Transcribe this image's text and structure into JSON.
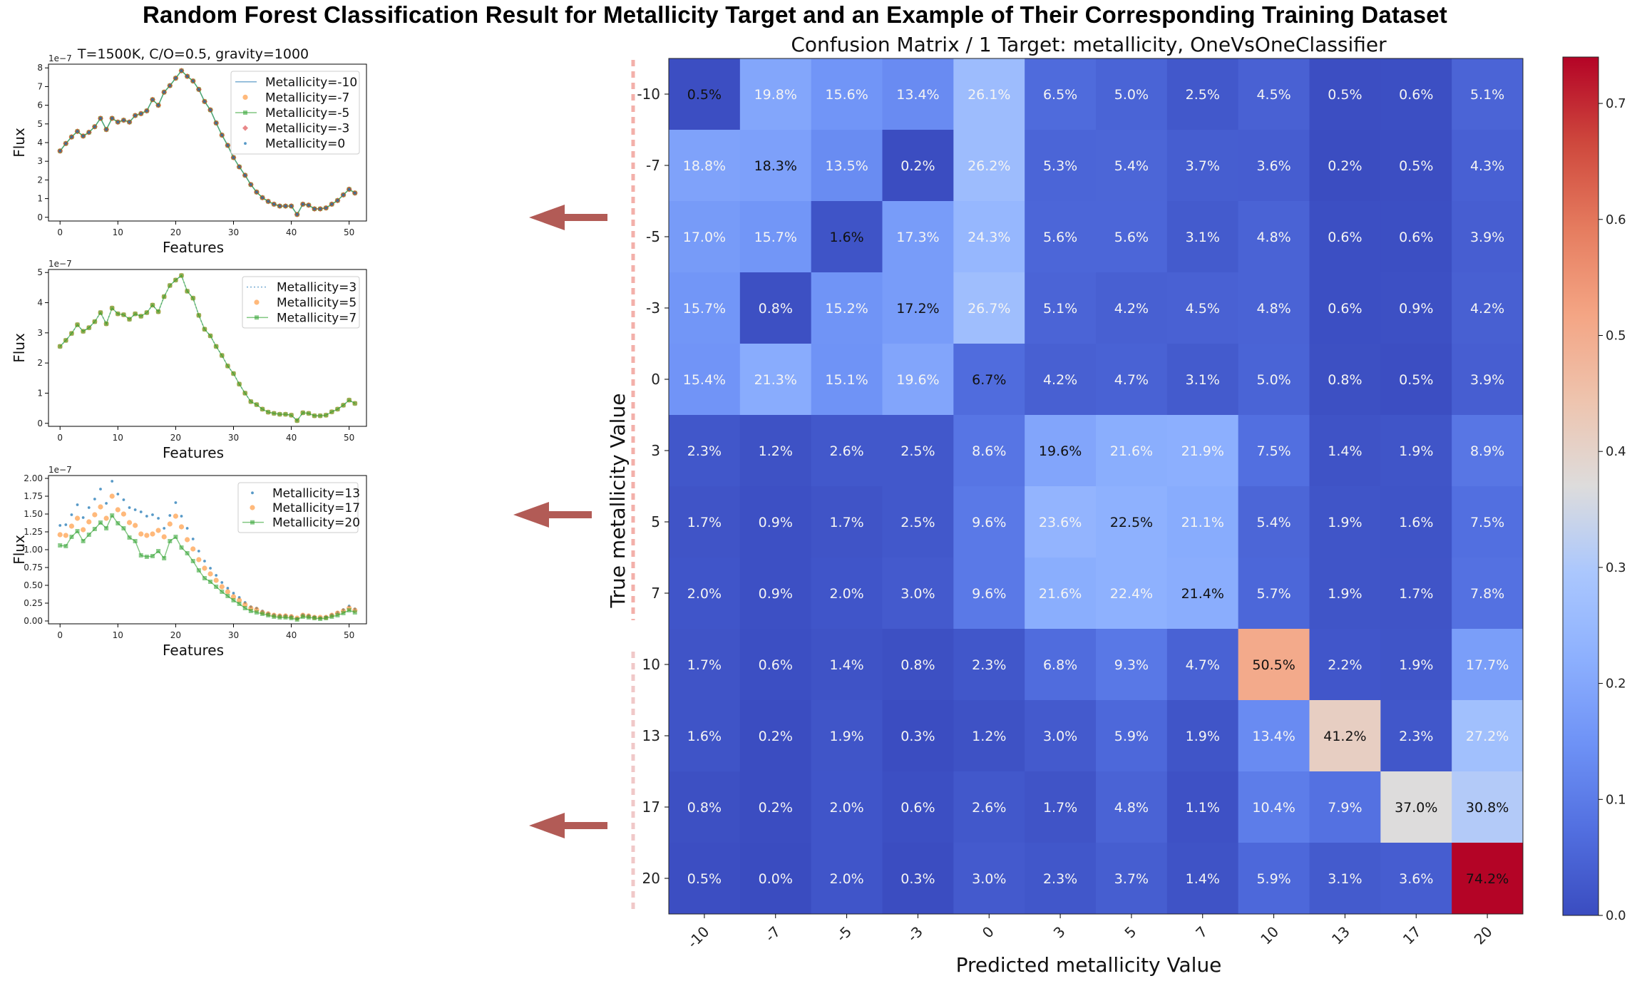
{
  "title": "Random Forest Classification Result for Metallicity Target and an Example of Their Corresponding Training Dataset",
  "colors": {
    "blue": "#1f77b4",
    "orange": "#ff7f0e",
    "green": "#2ca02c",
    "red": "#d62728",
    "arrow": "#b25b56",
    "dashed_red": "#f3b0aa",
    "dashed_pink": "#f0c8c8"
  },
  "chart_data": [
    {
      "type": "line",
      "title": "T=1500K, C/O=0.5, gravity=1000",
      "xlabel": "Features",
      "ylabel": "Flux",
      "exponent": "1e−7",
      "xlim": [
        -2,
        53
      ],
      "ylim": [
        -0.2,
        8.2
      ],
      "xticks": [
        0,
        10,
        20,
        30,
        40,
        50
      ],
      "yticks": [
        0,
        1,
        2,
        3,
        4,
        5,
        6,
        7,
        8
      ],
      "ytick_labels": [
        "0",
        "1",
        "2",
        "3",
        "4",
        "5",
        "6",
        "7",
        "8"
      ],
      "legend_position": "upper-right",
      "series": [
        {
          "name": "Metallicity=-10",
          "style": "line",
          "color": "#1f77b4",
          "values": [
            3.55,
            3.95,
            4.3,
            4.6,
            4.35,
            4.55,
            4.85,
            5.3,
            4.7,
            5.3,
            5.1,
            5.2,
            5.1,
            5.45,
            5.55,
            5.7,
            6.3,
            6.0,
            6.7,
            7.05,
            7.45,
            7.85,
            7.55,
            7.3,
            6.85,
            6.2,
            5.75,
            5.05,
            4.4,
            3.85,
            3.2,
            2.7,
            2.25,
            1.75,
            1.35,
            1.05,
            0.85,
            0.7,
            0.6,
            0.6,
            0.6,
            0.15,
            0.7,
            0.65,
            0.45,
            0.45,
            0.5,
            0.7,
            0.9,
            1.2,
            1.5,
            1.3
          ]
        },
        {
          "name": "Metallicity=-7",
          "style": "dots",
          "color": "#ff7f0e",
          "values": [
            3.55,
            3.95,
            4.3,
            4.6,
            4.35,
            4.55,
            4.85,
            5.3,
            4.7,
            5.3,
            5.1,
            5.2,
            5.1,
            5.45,
            5.55,
            5.7,
            6.3,
            6.0,
            6.7,
            7.05,
            7.45,
            7.85,
            7.55,
            7.3,
            6.85,
            6.2,
            5.75,
            5.05,
            4.4,
            3.85,
            3.2,
            2.7,
            2.25,
            1.75,
            1.35,
            1.05,
            0.85,
            0.7,
            0.6,
            0.6,
            0.6,
            0.15,
            0.7,
            0.65,
            0.45,
            0.45,
            0.5,
            0.7,
            0.9,
            1.2,
            1.5,
            1.3
          ]
        },
        {
          "name": "Metallicity=-5",
          "style": "line-square",
          "color": "#2ca02c",
          "values": [
            3.55,
            3.95,
            4.3,
            4.6,
            4.35,
            4.55,
            4.85,
            5.3,
            4.7,
            5.3,
            5.1,
            5.2,
            5.1,
            5.45,
            5.55,
            5.7,
            6.3,
            6.0,
            6.7,
            7.05,
            7.45,
            7.85,
            7.55,
            7.3,
            6.85,
            6.2,
            5.75,
            5.05,
            4.4,
            3.85,
            3.2,
            2.7,
            2.25,
            1.75,
            1.35,
            1.05,
            0.85,
            0.7,
            0.6,
            0.6,
            0.6,
            0.15,
            0.7,
            0.65,
            0.45,
            0.45,
            0.5,
            0.7,
            0.9,
            1.2,
            1.5,
            1.3
          ]
        },
        {
          "name": "Metallicity=-3",
          "style": "diamonds",
          "color": "#d62728",
          "values": [
            3.55,
            3.95,
            4.3,
            4.6,
            4.35,
            4.55,
            4.85,
            5.3,
            4.7,
            5.3,
            5.1,
            5.2,
            5.1,
            5.45,
            5.55,
            5.7,
            6.3,
            6.0,
            6.7,
            7.05,
            7.45,
            7.85,
            7.55,
            7.3,
            6.85,
            6.2,
            5.75,
            5.05,
            4.4,
            3.85,
            3.2,
            2.7,
            2.25,
            1.75,
            1.35,
            1.05,
            0.85,
            0.7,
            0.6,
            0.6,
            0.6,
            0.15,
            0.7,
            0.65,
            0.45,
            0.45,
            0.5,
            0.7,
            0.9,
            1.2,
            1.5,
            1.3
          ]
        },
        {
          "name": "Metallicity=0",
          "style": "small-dots",
          "color": "#1f77b4",
          "values": [
            3.55,
            3.95,
            4.3,
            4.6,
            4.35,
            4.55,
            4.85,
            5.3,
            4.7,
            5.3,
            5.1,
            5.2,
            5.1,
            5.45,
            5.55,
            5.7,
            6.3,
            6.0,
            6.7,
            7.05,
            7.45,
            7.85,
            7.55,
            7.3,
            6.85,
            6.2,
            5.75,
            5.05,
            4.4,
            3.85,
            3.2,
            2.7,
            2.25,
            1.75,
            1.35,
            1.05,
            0.85,
            0.7,
            0.6,
            0.6,
            0.6,
            0.15,
            0.7,
            0.65,
            0.45,
            0.45,
            0.5,
            0.7,
            0.9,
            1.2,
            1.5,
            1.3
          ]
        }
      ]
    },
    {
      "type": "line",
      "title": "",
      "xlabel": "Features",
      "ylabel": "Flux",
      "exponent": "1e−7",
      "xlim": [
        -2,
        53
      ],
      "ylim": [
        -0.1,
        5.1
      ],
      "xticks": [
        0,
        10,
        20,
        30,
        40,
        50
      ],
      "yticks": [
        0,
        1,
        2,
        3,
        4,
        5
      ],
      "ytick_labels": [
        "0",
        "1",
        "2",
        "3",
        "4",
        "5"
      ],
      "legend_position": "upper-right",
      "series": [
        {
          "name": "Metallicity=3",
          "style": "dotted",
          "color": "#1f77b4",
          "values": [
            2.55,
            2.75,
            2.98,
            3.27,
            3.05,
            3.17,
            3.37,
            3.67,
            3.3,
            3.82,
            3.63,
            3.6,
            3.45,
            3.63,
            3.55,
            3.67,
            3.92,
            3.7,
            4.2,
            4.57,
            4.75,
            4.9,
            4.38,
            4.15,
            3.58,
            3.12,
            2.9,
            2.55,
            2.25,
            1.9,
            1.65,
            1.3,
            1.0,
            0.72,
            0.62,
            0.47,
            0.37,
            0.33,
            0.3,
            0.3,
            0.27,
            0.09,
            0.35,
            0.33,
            0.25,
            0.25,
            0.27,
            0.38,
            0.47,
            0.6,
            0.77,
            0.66
          ]
        },
        {
          "name": "Metallicity=5",
          "style": "dots",
          "color": "#ff7f0e",
          "values": [
            2.55,
            2.75,
            2.98,
            3.27,
            3.05,
            3.17,
            3.37,
            3.67,
            3.3,
            3.82,
            3.63,
            3.6,
            3.45,
            3.63,
            3.55,
            3.67,
            3.92,
            3.7,
            4.2,
            4.57,
            4.75,
            4.9,
            4.38,
            4.15,
            3.58,
            3.12,
            2.9,
            2.55,
            2.25,
            1.9,
            1.65,
            1.3,
            1.0,
            0.72,
            0.62,
            0.47,
            0.37,
            0.33,
            0.3,
            0.3,
            0.27,
            0.09,
            0.35,
            0.33,
            0.25,
            0.25,
            0.27,
            0.38,
            0.47,
            0.6,
            0.77,
            0.66
          ]
        },
        {
          "name": "Metallicity=7",
          "style": "line-square",
          "color": "#2ca02c",
          "values": [
            2.55,
            2.75,
            2.98,
            3.27,
            3.05,
            3.17,
            3.37,
            3.67,
            3.3,
            3.82,
            3.63,
            3.6,
            3.45,
            3.63,
            3.55,
            3.67,
            3.92,
            3.7,
            4.2,
            4.57,
            4.75,
            4.9,
            4.38,
            4.15,
            3.58,
            3.12,
            2.9,
            2.55,
            2.25,
            1.9,
            1.65,
            1.3,
            1.0,
            0.72,
            0.62,
            0.47,
            0.37,
            0.33,
            0.3,
            0.3,
            0.27,
            0.09,
            0.35,
            0.33,
            0.25,
            0.25,
            0.27,
            0.38,
            0.47,
            0.6,
            0.77,
            0.66
          ]
        }
      ]
    },
    {
      "type": "line",
      "title": "",
      "xlabel": "Features",
      "ylabel": "Flux",
      "exponent": "1e−7",
      "xlim": [
        -2,
        53
      ],
      "ylim": [
        -0.04,
        2.04
      ],
      "xticks": [
        0,
        10,
        20,
        30,
        40,
        50
      ],
      "yticks": [
        0,
        0.25,
        0.5,
        0.75,
        1.0,
        1.25,
        1.5,
        1.75,
        2.0
      ],
      "ytick_labels": [
        "0.00",
        "0.25",
        "0.50",
        "0.75",
        "1.00",
        "1.25",
        "1.50",
        "1.75",
        "2.00"
      ],
      "legend_position": "upper-right",
      "series": [
        {
          "name": "Metallicity=13",
          "style": "small-dots",
          "color": "#1f77b4",
          "values": [
            1.34,
            1.35,
            1.49,
            1.63,
            1.45,
            1.59,
            1.71,
            1.85,
            1.65,
            1.96,
            1.78,
            1.7,
            1.59,
            1.56,
            1.53,
            1.47,
            1.49,
            1.44,
            1.3,
            1.48,
            1.66,
            1.47,
            1.3,
            1.15,
            0.98,
            0.84,
            0.74,
            0.64,
            0.54,
            0.46,
            0.39,
            0.33,
            0.26,
            0.2,
            0.18,
            0.14,
            0.11,
            0.09,
            0.08,
            0.08,
            0.07,
            0.04,
            0.09,
            0.08,
            0.06,
            0.05,
            0.06,
            0.09,
            0.12,
            0.16,
            0.21,
            0.17
          ]
        },
        {
          "name": "Metallicity=17",
          "style": "dots",
          "color": "#ff7f0e",
          "values": [
            1.21,
            1.2,
            1.33,
            1.44,
            1.28,
            1.39,
            1.49,
            1.6,
            1.44,
            1.75,
            1.56,
            1.5,
            1.38,
            1.34,
            1.22,
            1.2,
            1.22,
            1.27,
            1.18,
            1.36,
            1.47,
            1.32,
            1.14,
            1.01,
            0.86,
            0.74,
            0.66,
            0.57,
            0.48,
            0.41,
            0.34,
            0.29,
            0.23,
            0.18,
            0.16,
            0.12,
            0.1,
            0.08,
            0.07,
            0.07,
            0.06,
            0.04,
            0.08,
            0.07,
            0.05,
            0.05,
            0.05,
            0.08,
            0.11,
            0.14,
            0.18,
            0.15
          ]
        },
        {
          "name": "Metallicity=20",
          "style": "line-square",
          "color": "#2ca02c",
          "values": [
            1.06,
            1.05,
            1.18,
            1.26,
            1.12,
            1.21,
            1.29,
            1.38,
            1.3,
            1.48,
            1.37,
            1.3,
            1.17,
            1.12,
            0.92,
            0.9,
            0.91,
            0.98,
            0.88,
            1.12,
            1.18,
            1.03,
            0.95,
            0.84,
            0.71,
            0.6,
            0.55,
            0.48,
            0.41,
            0.35,
            0.29,
            0.24,
            0.18,
            0.14,
            0.12,
            0.1,
            0.08,
            0.06,
            0.05,
            0.05,
            0.04,
            0.02,
            0.06,
            0.05,
            0.04,
            0.03,
            0.04,
            0.06,
            0.08,
            0.11,
            0.15,
            0.12
          ]
        }
      ]
    },
    {
      "type": "heatmap",
      "title": "Confusion Matrix / 1 Target: metallicity, OneVsOneClassifier",
      "xlabel": "Predicted metallicity Value",
      "ylabel": "True metallicity Value",
      "categories": [
        "-10",
        "-7",
        "-5",
        "-3",
        "0",
        "3",
        "5",
        "7",
        "10",
        "13",
        "17",
        "20"
      ],
      "colormap": "coolwarm",
      "colorbar_range": [
        0,
        0.74
      ],
      "colorbar_ticks": [
        "0.0",
        "0.1",
        "0.2",
        "0.3",
        "0.4",
        "0.5",
        "0.6",
        "0.7"
      ],
      "values": [
        [
          0.5,
          19.8,
          15.6,
          13.4,
          26.1,
          6.5,
          5.0,
          2.5,
          4.5,
          0.5,
          0.6,
          5.1
        ],
        [
          18.8,
          18.3,
          13.5,
          0.2,
          26.2,
          5.3,
          5.4,
          3.7,
          3.6,
          0.2,
          0.5,
          4.3
        ],
        [
          17.0,
          15.7,
          1.6,
          17.3,
          24.3,
          5.6,
          5.6,
          3.1,
          4.8,
          0.6,
          0.6,
          3.9
        ],
        [
          15.7,
          0.8,
          15.2,
          17.2,
          26.7,
          5.1,
          4.2,
          4.5,
          4.8,
          0.6,
          0.9,
          4.2
        ],
        [
          15.4,
          21.3,
          15.1,
          19.6,
          6.7,
          4.2,
          4.7,
          3.1,
          5.0,
          0.8,
          0.5,
          3.9
        ],
        [
          2.3,
          1.2,
          2.6,
          2.5,
          8.6,
          19.6,
          21.6,
          21.9,
          7.5,
          1.4,
          1.9,
          8.9
        ],
        [
          1.7,
          0.9,
          1.7,
          2.5,
          9.6,
          23.6,
          22.5,
          21.1,
          5.4,
          1.9,
          1.6,
          7.5
        ],
        [
          2.0,
          0.9,
          2.0,
          3.0,
          9.6,
          21.6,
          22.4,
          21.4,
          5.7,
          1.9,
          1.7,
          7.8
        ],
        [
          1.7,
          0.6,
          1.4,
          0.8,
          2.3,
          6.8,
          9.3,
          4.7,
          50.5,
          2.2,
          1.9,
          17.7
        ],
        [
          1.6,
          0.2,
          1.9,
          0.3,
          1.2,
          3.0,
          5.9,
          1.9,
          13.4,
          41.2,
          2.3,
          27.2
        ],
        [
          0.8,
          0.2,
          2.0,
          0.6,
          2.6,
          1.7,
          4.8,
          1.1,
          10.4,
          7.9,
          37.0,
          30.8
        ],
        [
          0.5,
          0.0,
          2.0,
          0.3,
          3.0,
          2.3,
          3.7,
          1.4,
          5.9,
          3.1,
          3.6,
          74.2
        ]
      ]
    }
  ]
}
